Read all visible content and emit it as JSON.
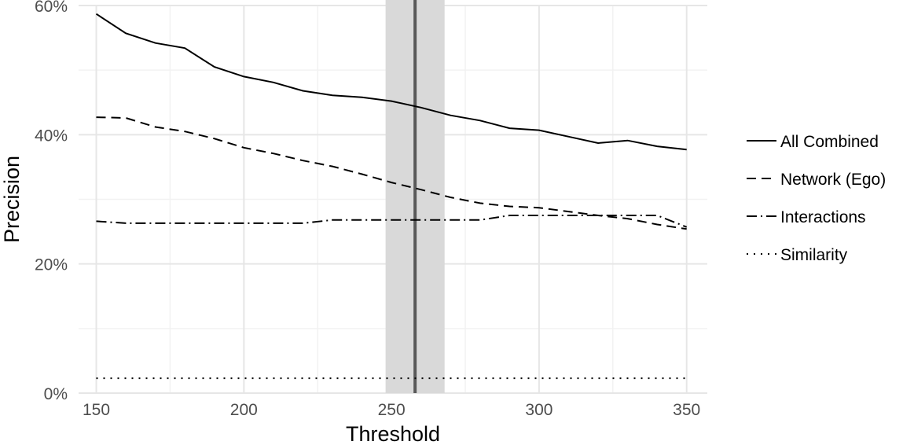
{
  "chart_data": {
    "type": "line",
    "xlabel": "Threshold",
    "ylabel": "Precision",
    "xlim": [
      144,
      357
    ],
    "ylim": [
      0,
      60
    ],
    "x_ticks": [
      150,
      200,
      250,
      300,
      350
    ],
    "y_ticks": [
      0,
      20,
      40,
      60
    ],
    "y_tick_labels": [
      "0%",
      "20%",
      "40%",
      "60%"
    ],
    "grid": true,
    "legend_position": "right",
    "highlight": {
      "x": 258,
      "band": [
        248,
        268
      ]
    },
    "x": [
      150,
      160,
      170,
      180,
      190,
      200,
      210,
      220,
      230,
      240,
      250,
      260,
      270,
      280,
      290,
      300,
      310,
      320,
      330,
      340,
      350
    ],
    "series": [
      {
        "name": "All Combined",
        "dash": "solid",
        "values": [
          58.7,
          55.7,
          54.2,
          53.4,
          50.5,
          49.0,
          48.1,
          46.8,
          46.1,
          45.8,
          45.2,
          44.2,
          43.0,
          42.2,
          41.0,
          40.7,
          39.7,
          38.7,
          39.1,
          38.2,
          37.7
        ]
      },
      {
        "name": "Network (Ego)",
        "dash": "dashed",
        "values": [
          42.7,
          42.6,
          41.2,
          40.5,
          39.4,
          38.0,
          37.1,
          36.0,
          35.1,
          33.9,
          32.6,
          31.5,
          30.3,
          29.4,
          28.9,
          28.7,
          28.1,
          27.5,
          27.0,
          26.1,
          25.4
        ]
      },
      {
        "name": "Interactions",
        "dash": "dotdash",
        "values": [
          26.6,
          26.3,
          26.3,
          26.3,
          26.3,
          26.3,
          26.3,
          26.3,
          26.8,
          26.8,
          26.8,
          26.8,
          26.8,
          26.8,
          27.5,
          27.5,
          27.5,
          27.5,
          27.5,
          27.5,
          25.7
        ]
      },
      {
        "name": "Similarity",
        "dash": "dotted",
        "values": [
          2.3,
          2.3,
          2.3,
          2.3,
          2.3,
          2.3,
          2.3,
          2.3,
          2.3,
          2.3,
          2.3,
          2.3,
          2.3,
          2.3,
          2.3,
          2.3,
          2.3,
          2.3,
          2.3,
          2.3,
          2.3
        ]
      }
    ]
  }
}
